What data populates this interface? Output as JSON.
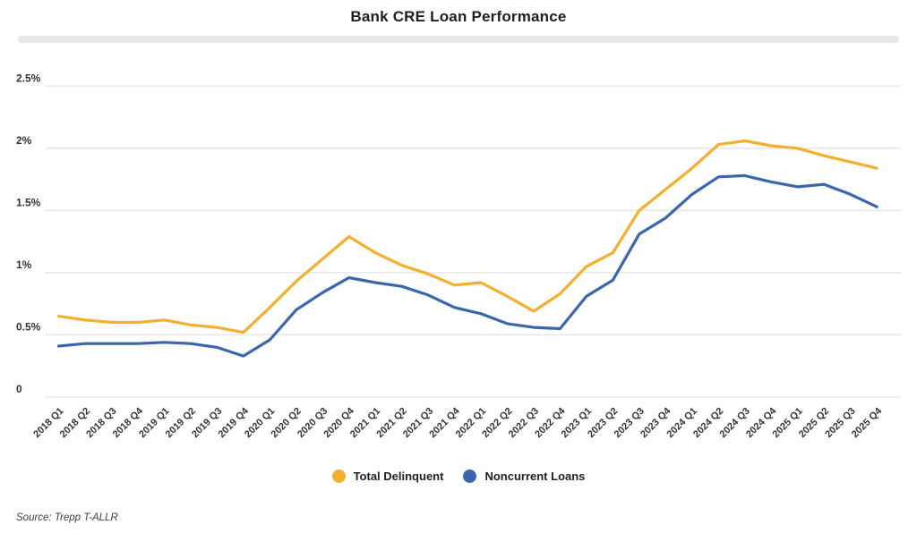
{
  "chart_data": {
    "type": "line",
    "title": "Bank CRE Loan Performance",
    "categories": [
      "2018 Q1",
      "2018 Q2",
      "2018 Q3",
      "2018 Q4",
      "2019 Q1",
      "2019 Q2",
      "2019 Q3",
      "2019 Q4",
      "2020 Q1",
      "2020 Q2",
      "2020 Q3",
      "2020 Q4",
      "2021 Q1",
      "2021 Q2",
      "2021 Q3",
      "2021 Q4",
      "2022 Q1",
      "2022 Q2",
      "2022 Q3",
      "2022 Q4",
      "2023 Q1",
      "2023 Q2",
      "2023 Q3",
      "2023 Q4",
      "2024 Q1",
      "2024 Q2",
      "2024 Q3",
      "2024 Q4",
      "2025 Q1",
      "2025 Q2",
      "2025 Q3",
      "2025 Q4"
    ],
    "series": [
      {
        "name": "Total Delinquent",
        "color": "#F5AF2E",
        "values": [
          0.65,
          0.62,
          0.6,
          0.6,
          0.62,
          0.58,
          0.56,
          0.52,
          0.72,
          0.93,
          1.11,
          1.29,
          1.16,
          1.06,
          0.99,
          0.9,
          0.92,
          0.81,
          0.69,
          0.83,
          1.05,
          1.16,
          1.5,
          1.67,
          1.84,
          2.03,
          2.06,
          2.02,
          2.0,
          1.94,
          1.89,
          1.84
        ]
      },
      {
        "name": "Noncurrent Loans",
        "color": "#3B66AE",
        "values": [
          0.41,
          0.43,
          0.43,
          0.43,
          0.44,
          0.43,
          0.4,
          0.33,
          0.46,
          0.7,
          0.84,
          0.96,
          0.92,
          0.89,
          0.82,
          0.72,
          0.67,
          0.59,
          0.56,
          0.55,
          0.81,
          0.94,
          1.31,
          1.44,
          1.63,
          1.77,
          1.78,
          1.73,
          1.69,
          1.71,
          1.63,
          1.53
        ]
      }
    ],
    "ylim": [
      0,
      2.5
    ],
    "y_ticks": [
      {
        "label": "2.5%",
        "value": 2.5
      },
      {
        "label": "2%",
        "value": 2.0
      },
      {
        "label": "1.5%",
        "value": 1.5
      },
      {
        "label": "1%",
        "value": 1.0
      },
      {
        "label": "0.5%",
        "value": 0.5
      },
      {
        "label": "0",
        "value": 0.0
      }
    ],
    "grid": "horizontal",
    "legend_position": "bottom",
    "gridline_color": "#e4e4e4",
    "tick_label_color": "#333333"
  },
  "source": "Source: Trepp T-ALLR"
}
